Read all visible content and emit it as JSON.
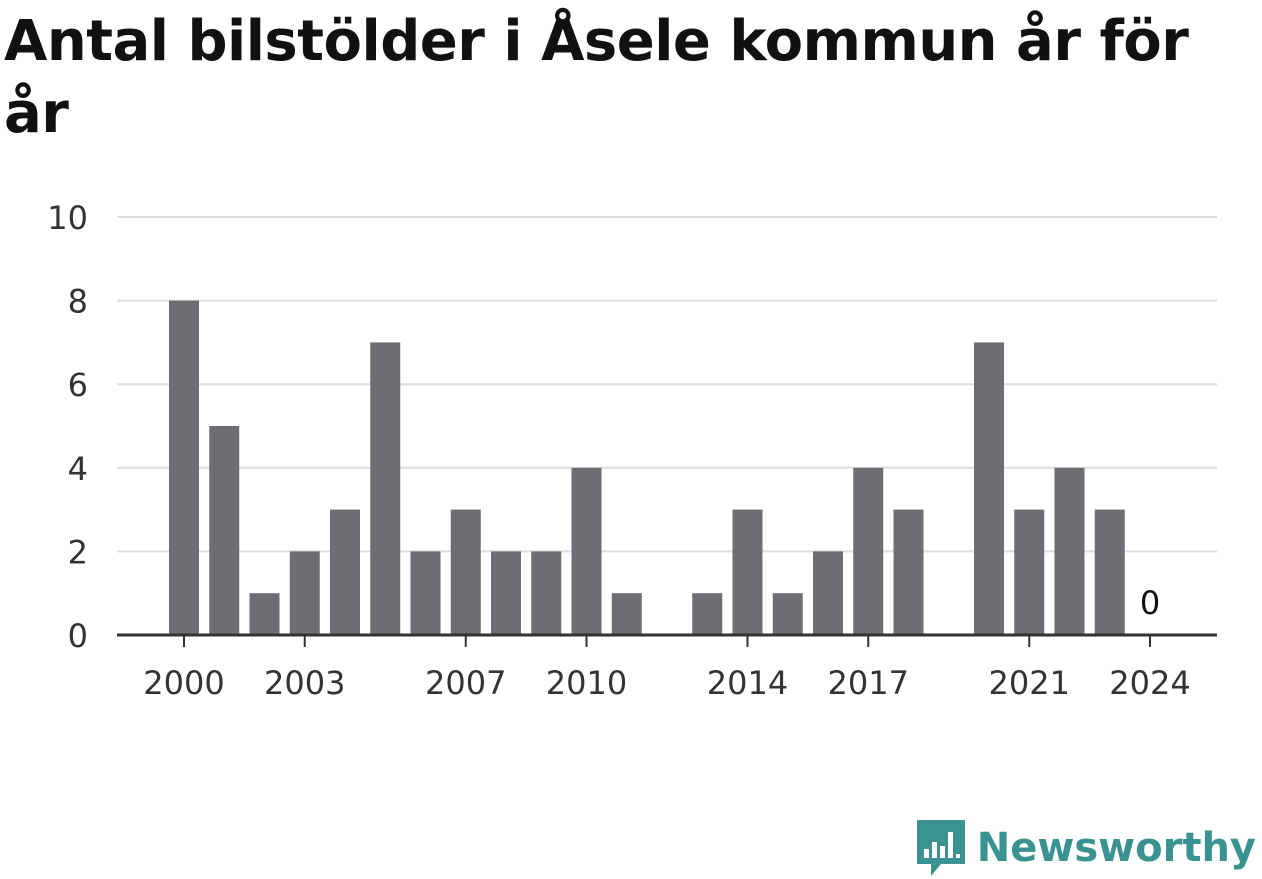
{
  "brand": {
    "name": "Newsworthy",
    "color": "#3a9391"
  },
  "chart_data": {
    "type": "bar",
    "title": "Antal bilstölder i Åsele kommun år för år",
    "xlabel": "",
    "ylabel": "",
    "ylim": [
      0,
      10
    ],
    "yticks": [
      0,
      2,
      4,
      6,
      8,
      10
    ],
    "grid": true,
    "bar_color": "#6e6d73",
    "categories": [
      "2000",
      "2001",
      "2002",
      "2003",
      "2004",
      "2005",
      "2006",
      "2007",
      "2008",
      "2009",
      "2010",
      "2011",
      "2012",
      "2013",
      "2014",
      "2015",
      "2016",
      "2017",
      "2018",
      "2019",
      "2020",
      "2021",
      "2022",
      "2023",
      "2024"
    ],
    "values": [
      8,
      5,
      1,
      2,
      3,
      7,
      2,
      3,
      2,
      2,
      4,
      1,
      null,
      1,
      3,
      1,
      2,
      4,
      3,
      null,
      7,
      3,
      4,
      3,
      0
    ],
    "xtick_labels": [
      "2000",
      "2003",
      "2007",
      "2010",
      "2014",
      "2017",
      "2021",
      "2024"
    ],
    "annotations": [
      {
        "category": "2024",
        "text": "0"
      }
    ]
  }
}
